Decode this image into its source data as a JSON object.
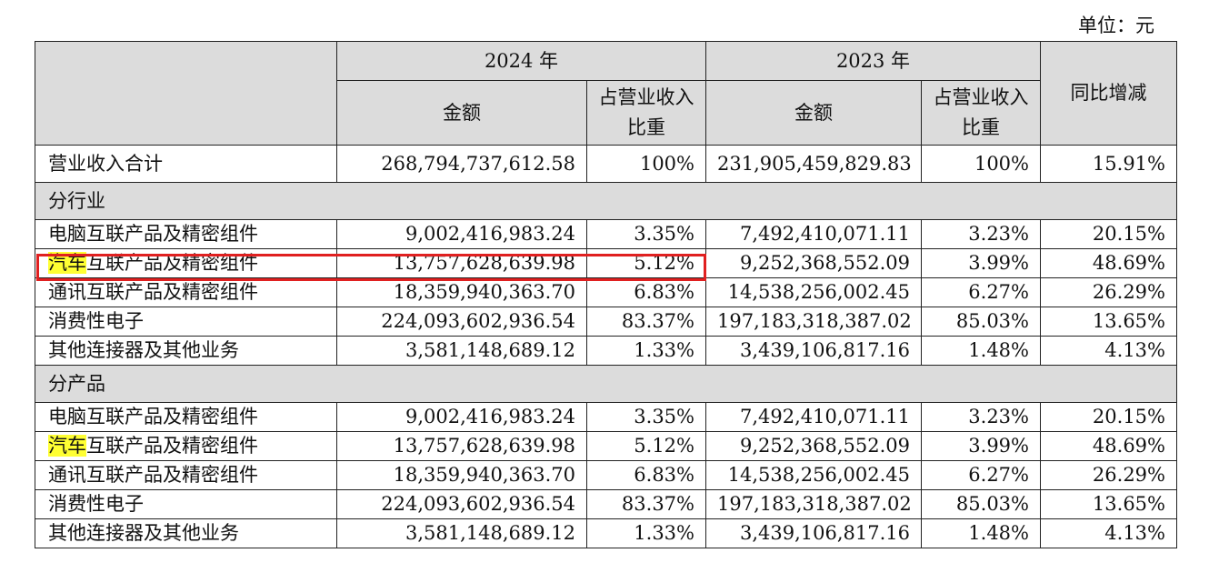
{
  "unit_label": "单位：元",
  "header": {
    "year_2024": "2024 年",
    "year_2023": "2023 年",
    "amount": "金额",
    "ratio": "占营业收入比重",
    "yoy": "同比增减"
  },
  "total": {
    "label": "营业收入合计",
    "amount_2024": "268,794,737,612.58",
    "ratio_2024": "100%",
    "amount_2023": "231,905,459,829.83",
    "ratio_2023": "100%",
    "yoy": "15.91%"
  },
  "by_industry": {
    "title": "分行业",
    "rows": [
      {
        "label_hl": "",
        "label": "电脑互联产品及精密组件",
        "amount_2024": "9,002,416,983.24",
        "ratio_2024": "3.35%",
        "amount_2023": "7,492,410,071.11",
        "ratio_2023": "3.23%",
        "yoy": "20.15%"
      },
      {
        "label_hl": "汽车",
        "label": "互联产品及精密组件",
        "amount_2024": "13,757,628,639.98",
        "ratio_2024": "5.12%",
        "amount_2023": "9,252,368,552.09",
        "ratio_2023": "3.99%",
        "yoy": "48.69%"
      },
      {
        "label_hl": "",
        "label": "通讯互联产品及精密组件",
        "amount_2024": "18,359,940,363.70",
        "ratio_2024": "6.83%",
        "amount_2023": "14,538,256,002.45",
        "ratio_2023": "6.27%",
        "yoy": "26.29%"
      },
      {
        "label_hl": "",
        "label": "消费性电子",
        "amount_2024": "224,093,602,936.54",
        "ratio_2024": "83.37%",
        "amount_2023": "197,183,318,387.02",
        "ratio_2023": "85.03%",
        "yoy": "13.65%"
      },
      {
        "label_hl": "",
        "label": "其他连接器及其他业务",
        "amount_2024": "3,581,148,689.12",
        "ratio_2024": "1.33%",
        "amount_2023": "3,439,106,817.16",
        "ratio_2023": "1.48%",
        "yoy": "4.13%"
      }
    ]
  },
  "by_product": {
    "title": "分产品",
    "rows": [
      {
        "label_hl": "",
        "label": "电脑互联产品及精密组件",
        "amount_2024": "9,002,416,983.24",
        "ratio_2024": "3.35%",
        "amount_2023": "7,492,410,071.11",
        "ratio_2023": "3.23%",
        "yoy": "20.15%"
      },
      {
        "label_hl": "汽车",
        "label": "互联产品及精密组件",
        "amount_2024": "13,757,628,639.98",
        "ratio_2024": "5.12%",
        "amount_2023": "9,252,368,552.09",
        "ratio_2023": "3.99%",
        "yoy": "48.69%"
      },
      {
        "label_hl": "",
        "label": "通讯互联产品及精密组件",
        "amount_2024": "18,359,940,363.70",
        "ratio_2024": "6.83%",
        "amount_2023": "14,538,256,002.45",
        "ratio_2023": "6.27%",
        "yoy": "26.29%"
      },
      {
        "label_hl": "",
        "label": "消费性电子",
        "amount_2024": "224,093,602,936.54",
        "ratio_2024": "83.37%",
        "amount_2023": "197,183,318,387.02",
        "ratio_2023": "85.03%",
        "yoy": "13.65%"
      },
      {
        "label_hl": "",
        "label": "其他连接器及其他业务",
        "amount_2024": "3,581,148,689.12",
        "ratio_2024": "1.33%",
        "amount_2023": "3,439,106,817.16",
        "ratio_2023": "1.48%",
        "yoy": "4.13%"
      }
    ]
  },
  "colors": {
    "header_bg": "#dcdcdc",
    "highlight": "#ffff33",
    "annotation_box": "#e02020"
  }
}
